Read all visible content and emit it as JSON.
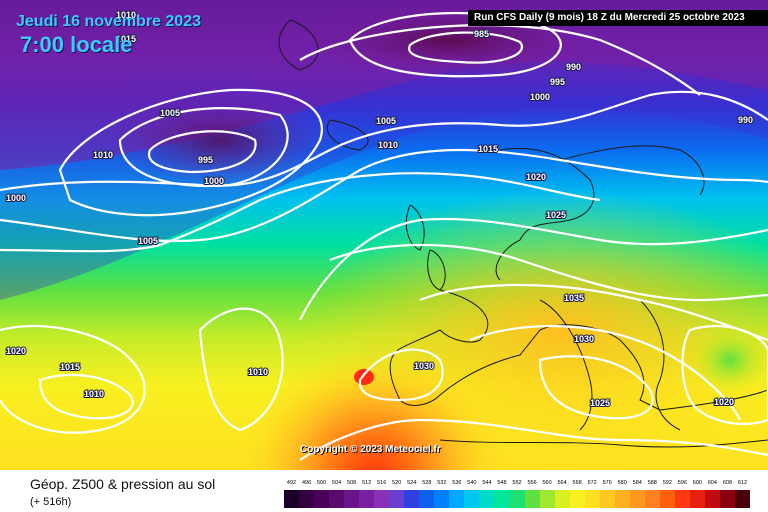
{
  "header": {
    "date": "Jeudi 16 novembre 2023",
    "time": "7:00 locale",
    "run": "Run CFS Daily (9 mois) 18 Z du Mercredi 25 octobre 2023"
  },
  "copyright": "Copyright © 2023 Meteociel.fr",
  "legend": {
    "title": "Géop. Z500 & pression au sol",
    "subtitle": "(+ 516h)",
    "scale_values": [
      "492",
      "496",
      "500",
      "504",
      "508",
      "512",
      "516",
      "520",
      "524",
      "528",
      "532",
      "536",
      "540",
      "544",
      "548",
      "552",
      "556",
      "560",
      "564",
      "568",
      "572",
      "576",
      "580",
      "584",
      "588",
      "592",
      "596",
      "600",
      "604",
      "608",
      "612"
    ],
    "scale_colors": [
      "#1a0026",
      "#35003f",
      "#4b0059",
      "#5a0b6e",
      "#6a148a",
      "#7b1fa2",
      "#8a2fb8",
      "#6a3fd0",
      "#3040e0",
      "#1060f0",
      "#0080ff",
      "#00a8ff",
      "#00c8f0",
      "#00dcc8",
      "#00e69a",
      "#1ee070",
      "#60e040",
      "#a0e830",
      "#d8f020",
      "#f8f020",
      "#ffe020",
      "#ffc820",
      "#ffb020",
      "#ff9820",
      "#ff8020",
      "#ff6010",
      "#ff3a10",
      "#e82010",
      "#c00a10",
      "#8a0010",
      "#4a0008"
    ]
  },
  "isobars": [
    {
      "label": "1010",
      "pos": "top-left"
    },
    {
      "label": "1015",
      "pos": "top-left"
    },
    {
      "label": "985",
      "pos": "north"
    },
    {
      "label": "990",
      "pos": "north"
    },
    {
      "label": "995",
      "pos": "north"
    },
    {
      "label": "1000",
      "pos": "north"
    },
    {
      "label": "990",
      "pos": "north-east"
    },
    {
      "label": "1005",
      "pos": "west"
    },
    {
      "label": "1010",
      "pos": "west"
    },
    {
      "label": "995",
      "pos": "west"
    },
    {
      "label": "1000",
      "pos": "west"
    },
    {
      "label": "1000",
      "pos": "far-west"
    },
    {
      "label": "1005",
      "pos": "north-atlantic"
    },
    {
      "label": "1010",
      "pos": "north-atlantic"
    },
    {
      "label": "1015",
      "pos": "north-sea"
    },
    {
      "label": "1020",
      "pos": "scandinavia"
    },
    {
      "label": "1005",
      "pos": "atlantic"
    },
    {
      "label": "1025",
      "pos": "europe"
    },
    {
      "label": "1035",
      "pos": "central-europe"
    },
    {
      "label": "1030",
      "pos": "balkans"
    },
    {
      "label": "1030",
      "pos": "iberia"
    },
    {
      "label": "1025",
      "pos": "mediterranean"
    },
    {
      "label": "1020",
      "pos": "far-west-south"
    },
    {
      "label": "1015",
      "pos": "south-west"
    },
    {
      "label": "1010",
      "pos": "south-west"
    },
    {
      "label": "1010",
      "pos": "mid-atlantic"
    },
    {
      "label": "1020",
      "pos": "east"
    }
  ]
}
